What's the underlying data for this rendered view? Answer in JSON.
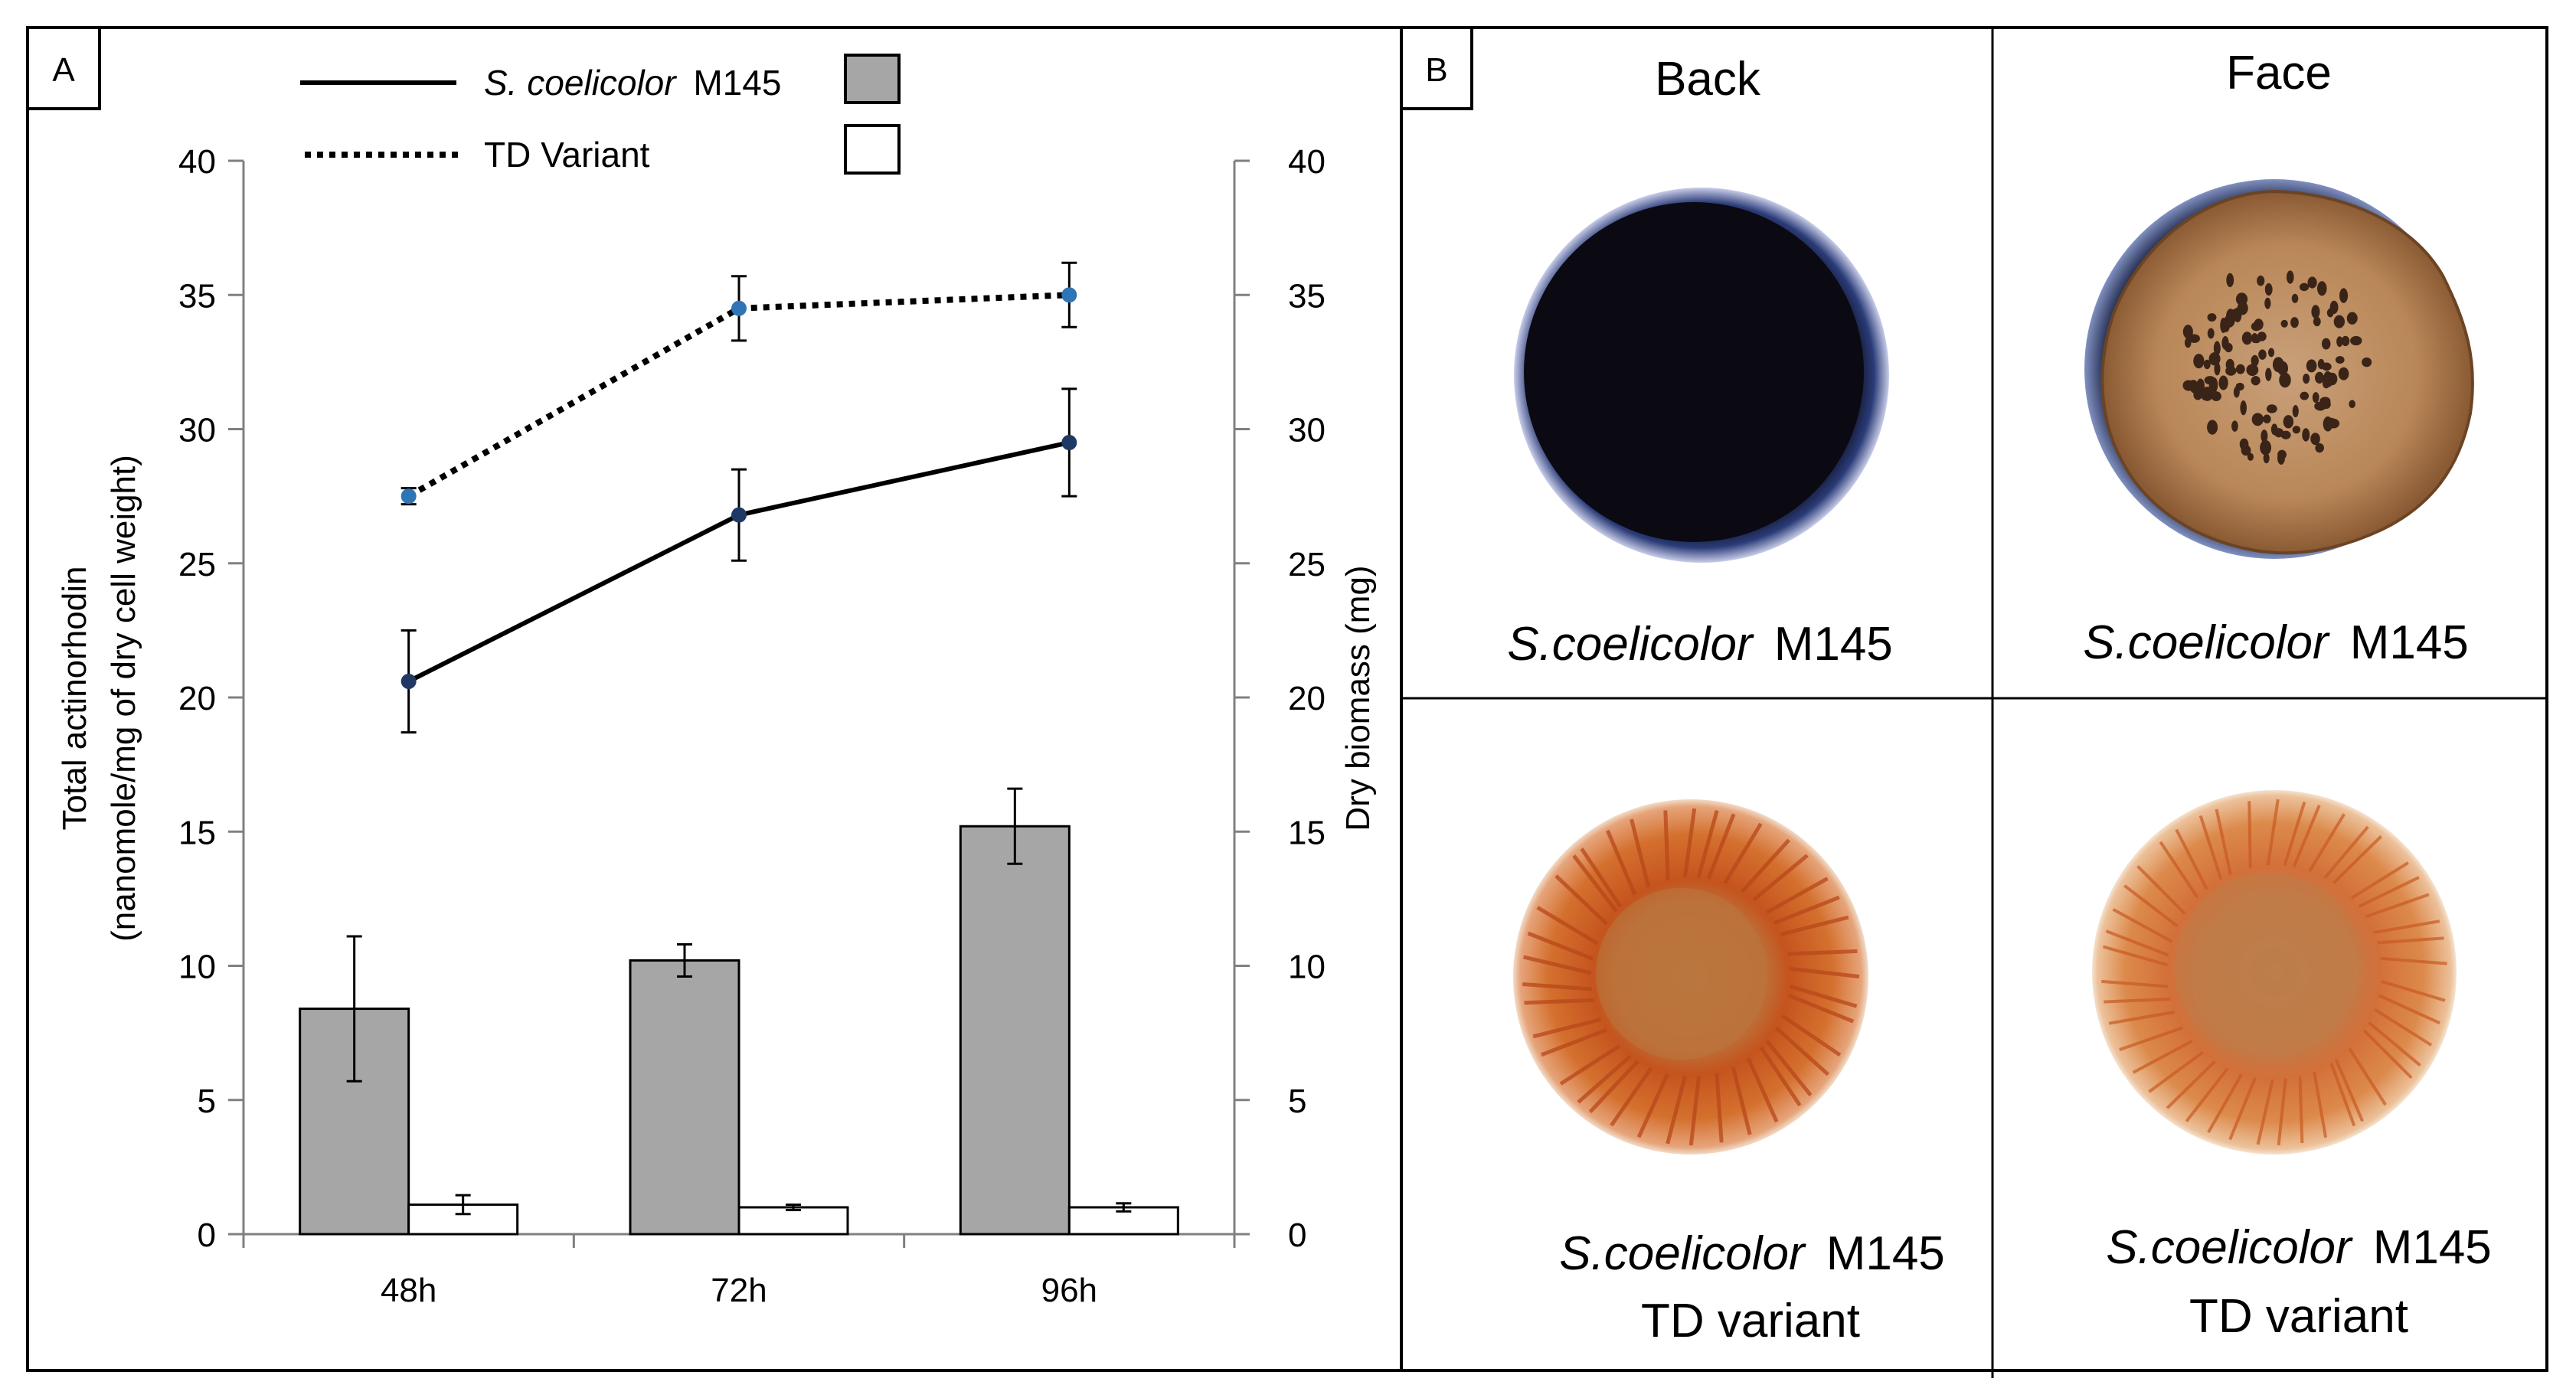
{
  "panel_a": {
    "label": "A",
    "legend": {
      "m145_species": "S. coelicolor",
      "m145_strain": "M145",
      "td_label": "TD Variant"
    }
  },
  "panel_b": {
    "label": "B",
    "col_headers": [
      "Back",
      "Face"
    ],
    "captions": {
      "species": "S.coelicolor",
      "strain": "M145",
      "variant": "TD variant"
    },
    "colors": {
      "m145_back_rim": "#2a3b78",
      "m145_back_fill": "#0b0a12",
      "m145_face_rim": "#202a4e",
      "m145_face_fill": "#b98757",
      "m145_face_spots": "#3a2418",
      "td_outer": "#d4702e",
      "td_ring": "#c5541e",
      "td_center": "#b9763e",
      "td_face_outer": "#dc8a4c",
      "td_face_center": "#c07b48"
    }
  },
  "chart_data": {
    "type": "bar+line",
    "categories": [
      "48h",
      "72h",
      "96h"
    ],
    "ylabel_left_line1": "Total actinorhodin",
    "ylabel_left_line2": "(nanomole/mg of dry cell weight)",
    "ylabel_right": "Dry biomass (mg)",
    "ylim_left": [
      0,
      40
    ],
    "ylim_right": [
      0,
      40
    ],
    "yticks": [
      0,
      5,
      10,
      15,
      20,
      25,
      30,
      35,
      40
    ],
    "bar_series": [
      {
        "name": "S. coelicolor M145",
        "values": [
          8.4,
          10.2,
          15.2
        ],
        "errors": [
          2.7,
          0.6,
          1.4
        ],
        "color": "#a6a6a6",
        "axis": "left"
      },
      {
        "name": "TD Variant",
        "values": [
          1.1,
          1.0,
          1.0
        ],
        "errors": [
          0.35,
          0.1,
          0.15
        ],
        "color": "#ffffff",
        "axis": "left"
      }
    ],
    "line_series": [
      {
        "name": "S. coelicolor M145",
        "values": [
          20.6,
          26.8,
          29.5
        ],
        "errors": [
          1.9,
          1.7,
          2.0
        ],
        "style": "solid",
        "marker_color": "#1f3864",
        "axis": "right"
      },
      {
        "name": "TD Variant",
        "values": [
          27.5,
          34.5,
          35.0
        ],
        "errors": [
          0.3,
          1.2,
          1.2
        ],
        "style": "dotted",
        "marker_color": "#2e75b6",
        "axis": "right"
      }
    ]
  }
}
